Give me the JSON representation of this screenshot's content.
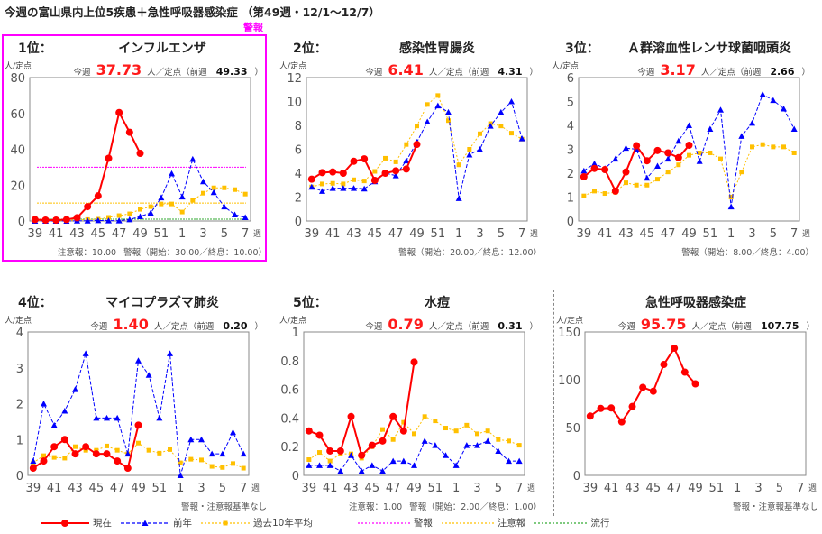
{
  "page_title": "今週の富山県内上位5疾患＋急性呼吸器感染症 （第49週・12/1～12/7）",
  "alarm_tag": "警報",
  "colors": {
    "current": "#ff0000",
    "prev_year": "#0000ff",
    "avg10": "#ffc000",
    "warning": "#ff00ff",
    "caution": "#ffc000",
    "epidemic": "#33aa33"
  },
  "labels": {
    "this_week": "今週",
    "unit_prev": "人／定点（前週",
    "close": "）",
    "unit": "人/定点",
    "week_unit": "週"
  },
  "legend": [
    {
      "key": "current",
      "label": "現在"
    },
    {
      "key": "prev_year",
      "label": "前年"
    },
    {
      "key": "avg10",
      "label": "過去10年平均"
    },
    {
      "key": "warning",
      "label": "警報"
    },
    {
      "key": "caution",
      "label": "注意報"
    },
    {
      "key": "epidemic",
      "label": "流行"
    }
  ],
  "chart_data": [
    {
      "type": "line",
      "rank": "1位：",
      "title": "インフルエンザ",
      "this_week": "37.73",
      "prev_week": "49.33",
      "ylim": [
        0,
        80
      ],
      "yticks": [
        "0",
        "20",
        "40",
        "60",
        "80"
      ],
      "x_labels": [
        "39",
        "41",
        "43",
        "45",
        "47",
        "49",
        "51",
        "1",
        "3",
        "5",
        "7"
      ],
      "notes": [
        "注意報：10.00",
        "警報（開始：30.00／終息：10.00）"
      ],
      "thresholds": {
        "warning": 30,
        "caution": 10,
        "epidemic": 1
      },
      "series": [
        {
          "name": "現在",
          "key": "current",
          "values": [
            0.8,
            0.5,
            0.5,
            0.8,
            1.8,
            8,
            14,
            35,
            60.5,
            49.5,
            37.73
          ]
        },
        {
          "name": "前年",
          "key": "prev_year",
          "values": [
            0,
            0,
            0,
            0,
            0.1,
            0.1,
            0.3,
            0.2,
            0.2,
            0.8,
            2.5,
            4.5,
            13,
            26.5,
            13.5,
            34.5,
            22,
            16,
            8,
            3.5,
            2
          ]
        },
        {
          "name": "過去10年平均",
          "key": "avg10",
          "values": [
            0.2,
            0.2,
            0.3,
            0.4,
            0.5,
            0.8,
            1,
            2,
            3,
            4,
            6.5,
            8,
            9.5,
            9.5,
            5,
            11.5,
            15.5,
            18.5,
            18.5,
            17.5,
            15
          ]
        }
      ]
    },
    {
      "type": "line",
      "rank": "2位：",
      "title": "感染性胃腸炎",
      "this_week": "6.41",
      "prev_week": "4.31",
      "ylim": [
        0,
        12
      ],
      "yticks": [
        "0",
        "2",
        "4",
        "6",
        "8",
        "10",
        "12"
      ],
      "x_labels": [
        "39",
        "41",
        "43",
        "45",
        "47",
        "49",
        "51",
        "1",
        "3",
        "5",
        "7"
      ],
      "notes": [
        "警報（開始：20.00／終息：12.00）"
      ],
      "thresholds": {},
      "series": [
        {
          "name": "現在",
          "key": "current",
          "values": [
            3.5,
            4.05,
            4.1,
            4.0,
            5.0,
            5.2,
            3.4,
            4.0,
            4.2,
            4.35,
            6.41
          ]
        },
        {
          "name": "前年",
          "key": "prev_year",
          "values": [
            2.85,
            2.5,
            2.75,
            2.75,
            2.75,
            2.7,
            3.3,
            4.0,
            3.8,
            5.05,
            6.6,
            8.3,
            9.65,
            9.1,
            1.9,
            5.55,
            6.0,
            7.95,
            9.1,
            10.0,
            6.9
          ]
        },
        {
          "name": "過去10年平均",
          "key": "avg10",
          "values": [
            2.85,
            3.1,
            3.15,
            3.1,
            3.45,
            3.35,
            4.15,
            5.25,
            4.95,
            6.4,
            7.95,
            9.75,
            10.5,
            8.4,
            4.7,
            6.0,
            7.3,
            8.15,
            7.95,
            7.35,
            6.85
          ]
        }
      ]
    },
    {
      "type": "line",
      "rank": "3位：",
      "title": "Ａ群溶血性レンサ球菌咽頭炎",
      "this_week": "3.17",
      "prev_week": "2.66",
      "ylim": [
        0,
        6
      ],
      "yticks": [
        "0",
        "1",
        "2",
        "3",
        "4",
        "5",
        "6"
      ],
      "x_labels": [
        "39",
        "41",
        "43",
        "45",
        "47",
        "49",
        "51",
        "1",
        "3",
        "5",
        "7"
      ],
      "notes": [
        "警報（開始：8.00／終息：4.00）"
      ],
      "thresholds": {},
      "series": [
        {
          "name": "現在",
          "key": "current",
          "values": [
            1.85,
            2.2,
            2.15,
            1.25,
            2.05,
            3.15,
            2.52,
            2.95,
            2.85,
            2.65,
            3.17
          ]
        },
        {
          "name": "前年",
          "key": "prev_year",
          "values": [
            2.1,
            2.4,
            2.2,
            2.6,
            3.05,
            3.0,
            1.8,
            2.3,
            2.6,
            3.35,
            4.0,
            2.5,
            3.85,
            4.65,
            0.6,
            3.55,
            4.1,
            5.3,
            5.05,
            4.7,
            3.85
          ]
        },
        {
          "name": "過去10年平均",
          "key": "avg10",
          "values": [
            1.05,
            1.25,
            1.15,
            1.2,
            1.6,
            1.5,
            1.5,
            1.75,
            2.05,
            2.35,
            2.75,
            2.85,
            2.85,
            2.6,
            1.0,
            2.05,
            3.1,
            3.2,
            3.1,
            3.1,
            2.85
          ]
        }
      ]
    },
    {
      "type": "line",
      "rank": "4位：",
      "title": "マイコプラズマ肺炎",
      "this_week": "1.40",
      "prev_week": "0.20",
      "ylim": [
        0,
        4
      ],
      "yticks": [
        "0",
        "1",
        "2",
        "3",
        "4"
      ],
      "x_labels": [
        "39",
        "41",
        "43",
        "45",
        "47",
        "49",
        "51",
        "1",
        "3",
        "5",
        "7"
      ],
      "notes": [
        "警報・注意報基準なし"
      ],
      "thresholds": {},
      "series": [
        {
          "name": "現在",
          "key": "current",
          "values": [
            0.2,
            0.4,
            0.8,
            1.0,
            0.6,
            0.8,
            0.6,
            0.6,
            0.4,
            0.2,
            1.4
          ]
        },
        {
          "name": "前年",
          "key": "prev_year",
          "values": [
            0.4,
            2.0,
            1.4,
            1.8,
            2.4,
            3.4,
            1.6,
            1.6,
            1.6,
            0.6,
            3.2,
            2.8,
            1.6,
            3.4,
            0,
            1.0,
            1.0,
            0.6,
            0.6,
            1.2,
            0.6
          ]
        },
        {
          "name": "過去10年平均",
          "key": "avg10",
          "values": [
            0.35,
            0.55,
            0.5,
            0.48,
            0.8,
            0.7,
            0.7,
            0.82,
            0.7,
            0.6,
            0.9,
            0.7,
            0.62,
            0.72,
            0.35,
            0.45,
            0.43,
            0.25,
            0.22,
            0.33,
            0.2
          ]
        }
      ]
    },
    {
      "type": "line",
      "rank": "5位：",
      "title": "水痘",
      "this_week": "0.79",
      "prev_week": "0.31",
      "ylim": [
        0,
        1
      ],
      "yticks": [
        "0",
        "0.2",
        "0.4",
        "0.6",
        "0.8",
        "1"
      ],
      "x_labels": [
        "39",
        "41",
        "43",
        "45",
        "47",
        "49",
        "51",
        "1",
        "3",
        "5",
        "7"
      ],
      "notes": [
        "注意報：1.00",
        "警報（開始：2.00／終息：1.00）"
      ],
      "thresholds": {},
      "series": [
        {
          "name": "現在",
          "key": "current",
          "values": [
            0.31,
            0.28,
            0.17,
            0.17,
            0.41,
            0.14,
            0.21,
            0.24,
            0.41,
            0.31,
            0.79
          ]
        },
        {
          "name": "前年",
          "key": "prev_year",
          "values": [
            0.07,
            0.07,
            0.07,
            0.03,
            0.14,
            0.03,
            0.07,
            0.03,
            0.1,
            0.1,
            0.07,
            0.24,
            0.21,
            0.14,
            0.07,
            0.21,
            0.21,
            0.24,
            0.17,
            0.1,
            0.1
          ]
        },
        {
          "name": "過去10年平均",
          "key": "avg10",
          "values": [
            0.11,
            0.16,
            0.1,
            0.15,
            0.15,
            0.12,
            0.2,
            0.32,
            0.25,
            0.37,
            0.29,
            0.41,
            0.38,
            0.33,
            0.31,
            0.35,
            0.29,
            0.31,
            0.25,
            0.24,
            0.21
          ]
        }
      ]
    },
    {
      "type": "line",
      "rank": "",
      "title": "急性呼吸器感染症",
      "this_week": "95.75",
      "prev_week": "107.75",
      "ylim": [
        0,
        150
      ],
      "yticks": [
        "0",
        "50",
        "100",
        "150"
      ],
      "x_labels": [
        "39",
        "41",
        "43",
        "45",
        "47",
        "49",
        "51",
        "1",
        "3",
        "5",
        "7"
      ],
      "notes": [
        "警報・注意報基準なし"
      ],
      "thresholds": {},
      "series": [
        {
          "name": "現在",
          "key": "current",
          "values": [
            62,
            70,
            70.5,
            56,
            72,
            92,
            88,
            116,
            133,
            108,
            95.75
          ]
        }
      ]
    }
  ]
}
